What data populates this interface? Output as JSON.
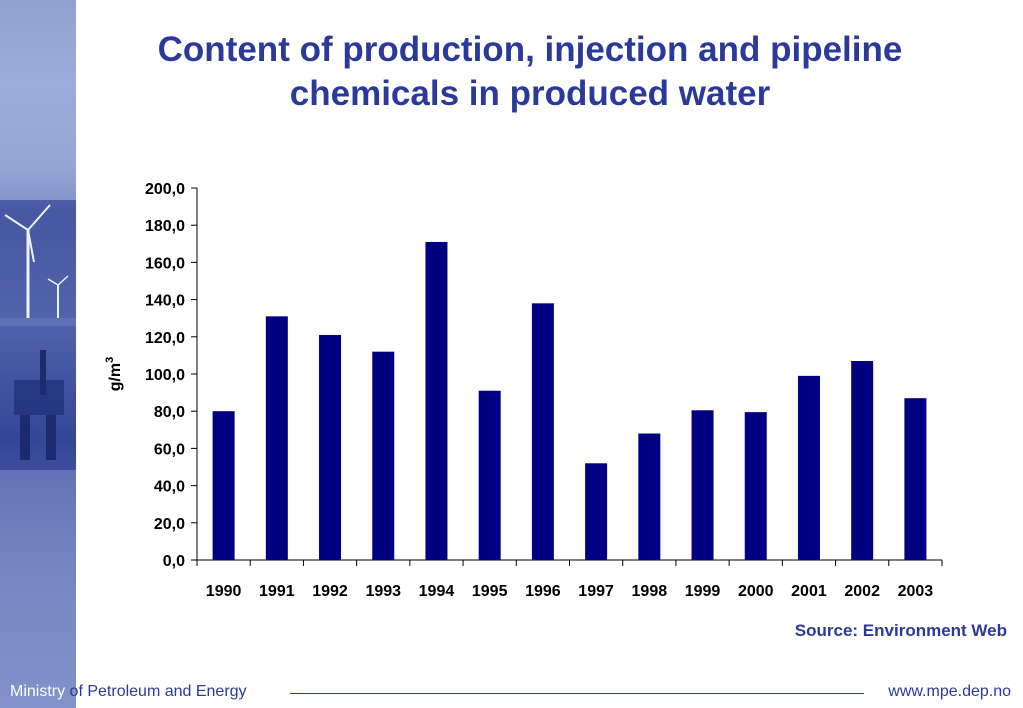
{
  "title_line1": "Content of production, injection and pipeline",
  "title_line2": "chemicals in produced water",
  "source": "Source: Environment Web",
  "footer": {
    "ministry_word": "Ministry",
    "rest": " of Petroleum and Energy",
    "url": "www.mpe.dep.no"
  },
  "colors": {
    "title": "#2b3a9a",
    "bar": "#000080"
  },
  "chart_data": {
    "type": "bar",
    "title": "Content of production, injection and pipeline chemicals in produced water",
    "ylabel": "g/m",
    "ylabel_superscript": "3",
    "categories": [
      "1990",
      "1991",
      "1992",
      "1993",
      "1994",
      "1995",
      "1996",
      "1997",
      "1998",
      "1999",
      "2000",
      "2001",
      "2002",
      "2003"
    ],
    "values": [
      80,
      131,
      121,
      112,
      171,
      91,
      138,
      52,
      68,
      80.5,
      79.5,
      99,
      107,
      87
    ],
    "ylim": [
      0,
      200
    ],
    "yticks": [
      "0,0",
      "20,0",
      "40,0",
      "60,0",
      "80,0",
      "100,0",
      "120,0",
      "140,0",
      "160,0",
      "180,0",
      "200,0"
    ],
    "grid": false,
    "legend": "none"
  }
}
